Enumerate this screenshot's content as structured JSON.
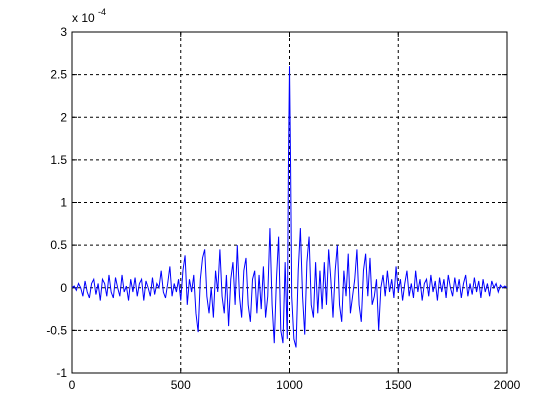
{
  "chart_data": {
    "type": "line",
    "y_multiplier": "x 10",
    "y_exponent": "-4",
    "x": [
      0,
      10,
      20,
      30,
      40,
      50,
      60,
      70,
      80,
      90,
      100,
      110,
      120,
      130,
      140,
      150,
      160,
      170,
      180,
      190,
      200,
      210,
      220,
      230,
      240,
      250,
      260,
      270,
      280,
      290,
      300,
      310,
      320,
      330,
      340,
      350,
      360,
      370,
      380,
      390,
      400,
      410,
      420,
      430,
      440,
      450,
      460,
      470,
      480,
      490,
      500,
      510,
      520,
      530,
      540,
      550,
      560,
      570,
      580,
      590,
      600,
      610,
      620,
      630,
      640,
      650,
      660,
      670,
      680,
      690,
      700,
      710,
      720,
      730,
      740,
      750,
      760,
      770,
      780,
      790,
      800,
      810,
      820,
      830,
      840,
      850,
      860,
      870,
      880,
      890,
      900,
      910,
      920,
      930,
      940,
      950,
      960,
      970,
      980,
      990,
      995,
      1000,
      1005,
      1010,
      1020,
      1030,
      1040,
      1050,
      1060,
      1070,
      1080,
      1090,
      1100,
      1110,
      1120,
      1130,
      1140,
      1150,
      1160,
      1170,
      1180,
      1190,
      1200,
      1210,
      1220,
      1230,
      1240,
      1250,
      1260,
      1270,
      1280,
      1290,
      1300,
      1310,
      1320,
      1330,
      1340,
      1350,
      1360,
      1370,
      1380,
      1390,
      1400,
      1410,
      1420,
      1430,
      1440,
      1450,
      1460,
      1470,
      1480,
      1490,
      1500,
      1510,
      1520,
      1530,
      1540,
      1550,
      1560,
      1570,
      1580,
      1590,
      1600,
      1610,
      1620,
      1630,
      1640,
      1650,
      1660,
      1670,
      1680,
      1690,
      1700,
      1710,
      1720,
      1730,
      1740,
      1750,
      1760,
      1770,
      1780,
      1790,
      1800,
      1810,
      1820,
      1830,
      1840,
      1850,
      1860,
      1870,
      1880,
      1890,
      1900,
      1910,
      1920,
      1930,
      1940,
      1950,
      1960,
      1970,
      1980,
      1990,
      2000
    ],
    "values": [
      0,
      0.02,
      -0.03,
      0.05,
      0,
      -0.1,
      0.08,
      -0.05,
      -0.12,
      0.05,
      0.1,
      -0.08,
      0.05,
      -0.15,
      0.1,
      0.05,
      -0.1,
      0.15,
      -0.05,
      -0.12,
      0.12,
      0,
      -0.1,
      0.15,
      -0.05,
      0.02,
      -0.15,
      0.1,
      -0.05,
      0.12,
      -0.1,
      0.05,
      0.1,
      -0.15,
      0.08,
      0,
      -0.1,
      0.12,
      -0.08,
      0.05,
      0,
      0.2,
      -0.05,
      -0.12,
      0.05,
      0.25,
      -0.1,
      0.05,
      -0.05,
      0.1,
      -0.15,
      0.2,
      0.38,
      -0.2,
      0.1,
      -0.05,
      0.15,
      -0.3,
      -0.52,
      0.1,
      0.35,
      0.45,
      -0.1,
      -0.3,
      0,
      -0.35,
      0.2,
      -0.05,
      0.45,
      -0.1,
      -0.3,
      0.15,
      -0.45,
      0.1,
      0.3,
      -0.2,
      0.5,
      -0.1,
      -0.35,
      0.2,
      0.35,
      -0.2,
      -0.4,
      0.1,
      0.2,
      -0.3,
      0.15,
      -0.25,
      0.25,
      -0.35,
      -0.1,
      0.7,
      -0.2,
      -0.65,
      0.1,
      0.6,
      -0.5,
      -0.65,
      0.3,
      -0.6,
      1.4,
      2.6,
      1.4,
      -0.1,
      -0.6,
      -0.7,
      0.2,
      0.7,
      -0.1,
      -0.55,
      0.3,
      0.6,
      -0.2,
      -0.35,
      0.3,
      -0.3,
      0.2,
      -0.25,
      0.3,
      -0.2,
      0.45,
      0.1,
      -0.35,
      0.2,
      0.5,
      -0.2,
      -0.4,
      0.2,
      -0.1,
      0.4,
      -0.3,
      -0.1,
      0.1,
      0.45,
      -0.2,
      -0.4,
      0.2,
      0.4,
      -0.1,
      0.35,
      -0.2,
      -0.1,
      0.1,
      -0.5,
      0,
      0.15,
      -0.1,
      0.2,
      -0.05,
      0.1,
      -0.12,
      0.25,
      -0.05,
      0.1,
      -0.15,
      0.05,
      0.2,
      -0.1,
      0.05,
      -0.12,
      0.2,
      -0.05,
      0.1,
      -0.15,
      0.05,
      0.1,
      -0.1,
      0.15,
      -0.05,
      0.08,
      -0.15,
      0.12,
      -0.05,
      0.1,
      -0.12,
      0.15,
      0,
      -0.1,
      0.12,
      -0.05,
      0.1,
      -0.12,
      0.05,
      0.15,
      -0.1,
      0.05,
      -0.08,
      0.12,
      -0.05,
      0.08,
      -0.12,
      0.1,
      -0.05,
      0.05,
      -0.1,
      0.08,
      0,
      0.05,
      -0.05,
      0.03,
      0,
      0.02,
      0
    ],
    "color": "#0000ff",
    "xlim": [
      0,
      2000
    ],
    "xticks": [
      0,
      500,
      1000,
      1500,
      2000
    ],
    "ylim": [
      -1,
      3
    ],
    "yticks": [
      -1,
      -0.5,
      0,
      0.5,
      1,
      1.5,
      2,
      2.5,
      3
    ],
    "grid": true
  }
}
